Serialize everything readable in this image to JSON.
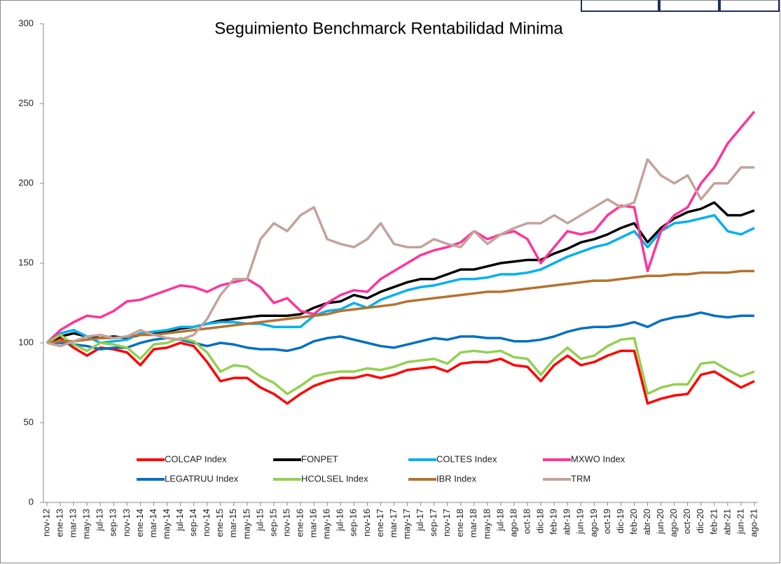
{
  "chart_data": {
    "type": "line",
    "title": "Seguimiento Benchmarck Rentabilidad Minima",
    "categories": [
      "nov-12",
      "ene-13",
      "mar-13",
      "may-13",
      "jul-13",
      "sep-13",
      "nov-13",
      "ene-14",
      "mar-14",
      "may-14",
      "jul-14",
      "sep-14",
      "nov-14",
      "ene-15",
      "mar-15",
      "may-15",
      "jul-15",
      "sep-15",
      "nov-15",
      "ene-16",
      "mar-16",
      "may-16",
      "jul-16",
      "sep-16",
      "nov-16",
      "ene-17",
      "mar-17",
      "may-17",
      "jul-17",
      "sep-17",
      "nov-17",
      "ene-18",
      "mar-18",
      "may-18",
      "jul-18",
      "ago-18",
      "oct-18",
      "dic-18",
      "feb-19",
      "abr-19",
      "jun-19",
      "ago-19",
      "oct-19",
      "dic-19",
      "feb-20",
      "abr-20",
      "jun-20",
      "ago-20",
      "oct-20",
      "dic-20",
      "feb-21",
      "abr-21",
      "jun-21",
      "ago-21"
    ],
    "series": [
      {
        "name": "COLCAP Index",
        "color": "#ff0000",
        "values": [
          100,
          103,
          97,
          92,
          97,
          96,
          94,
          86,
          96,
          97,
          100,
          98,
          88,
          76,
          78,
          78,
          72,
          68,
          62,
          68,
          73,
          76,
          78,
          78,
          80,
          78,
          80,
          83,
          84,
          85,
          82,
          87,
          88,
          88,
          90,
          86,
          85,
          76,
          86,
          92,
          86,
          88,
          92,
          95,
          95,
          62,
          65,
          67,
          68,
          80,
          82,
          77,
          72,
          76
        ]
      },
      {
        "name": "FONPET",
        "color": "#000000",
        "values": [
          100,
          104,
          106,
          104,
          103,
          104,
          103,
          105,
          106,
          107,
          109,
          110,
          112,
          114,
          115,
          116,
          117,
          117,
          117,
          118,
          122,
          125,
          126,
          130,
          128,
          132,
          135,
          138,
          140,
          140,
          143,
          146,
          146,
          148,
          150,
          151,
          152,
          152,
          156,
          159,
          163,
          165,
          168,
          172,
          175,
          163,
          172,
          178,
          182,
          184,
          188,
          180,
          180,
          183
        ]
      },
      {
        "name": "COLTES Index",
        "color": "#00b0f0",
        "values": [
          100,
          106,
          108,
          104,
          100,
          101,
          102,
          106,
          107,
          108,
          110,
          110,
          112,
          113,
          113,
          112,
          112,
          110,
          110,
          110,
          117,
          120,
          121,
          125,
          122,
          127,
          130,
          133,
          135,
          136,
          138,
          140,
          140,
          141,
          143,
          143,
          144,
          146,
          150,
          154,
          157,
          160,
          162,
          166,
          170,
          160,
          170,
          175,
          176,
          178,
          180,
          170,
          168,
          172
        ]
      },
      {
        "name": "MXWO Index",
        "color": "#ff3399",
        "values": [
          100,
          108,
          113,
          117,
          116,
          120,
          126,
          127,
          130,
          133,
          136,
          135,
          132,
          136,
          138,
          140,
          135,
          125,
          128,
          120,
          118,
          125,
          130,
          133,
          132,
          140,
          145,
          150,
          155,
          158,
          160,
          163,
          170,
          165,
          168,
          170,
          165,
          150,
          160,
          170,
          168,
          170,
          180,
          186,
          185,
          145,
          170,
          180,
          185,
          200,
          210,
          225,
          235,
          245
        ]
      },
      {
        "name": "LEGATRUU Index",
        "color": "#0070c0",
        "values": [
          100,
          100,
          99,
          98,
          96,
          97,
          97,
          100,
          102,
          103,
          102,
          100,
          98,
          100,
          99,
          97,
          96,
          96,
          95,
          97,
          101,
          103,
          104,
          102,
          100,
          98,
          97,
          99,
          101,
          103,
          102,
          104,
          104,
          103,
          103,
          101,
          101,
          102,
          104,
          107,
          109,
          110,
          110,
          111,
          113,
          110,
          114,
          116,
          117,
          119,
          117,
          116,
          117,
          117
        ]
      },
      {
        "name": "HCOLSEL Index",
        "color": "#92d050",
        "values": [
          100,
          105,
          99,
          95,
          100,
          99,
          97,
          90,
          99,
          100,
          103,
          101,
          94,
          82,
          86,
          85,
          79,
          75,
          68,
          73,
          79,
          81,
          82,
          82,
          84,
          83,
          85,
          88,
          89,
          90,
          87,
          94,
          95,
          94,
          95,
          91,
          90,
          80,
          90,
          97,
          90,
          92,
          98,
          102,
          103,
          68,
          72,
          74,
          74,
          87,
          88,
          83,
          79,
          82
        ]
      },
      {
        "name": "IBR Index",
        "color": "#b5722f",
        "values": [
          100,
          101,
          101,
          102,
          103,
          103,
          104,
          105,
          105,
          106,
          107,
          108,
          109,
          110,
          111,
          112,
          113,
          114,
          115,
          116,
          117,
          118,
          120,
          121,
          122,
          123,
          124,
          126,
          127,
          128,
          129,
          130,
          131,
          132,
          132,
          133,
          134,
          135,
          136,
          137,
          138,
          139,
          139,
          140,
          141,
          142,
          142,
          143,
          143,
          144,
          144,
          144,
          145,
          145
        ]
      },
      {
        "name": "TRM",
        "color": "#c4a29c",
        "values": [
          100,
          98,
          101,
          104,
          105,
          103,
          104,
          108,
          105,
          103,
          102,
          105,
          115,
          130,
          140,
          140,
          165,
          175,
          170,
          180,
          185,
          165,
          162,
          160,
          165,
          175,
          162,
          160,
          160,
          165,
          162,
          160,
          170,
          162,
          168,
          172,
          175,
          175,
          180,
          175,
          180,
          185,
          190,
          185,
          188,
          215,
          205,
          200,
          205,
          190,
          200,
          200,
          210,
          210
        ]
      }
    ],
    "ylim": [
      0,
      300
    ],
    "yticks": [
      0,
      50,
      100,
      150,
      200,
      250,
      300
    ],
    "legend": "bottom"
  }
}
